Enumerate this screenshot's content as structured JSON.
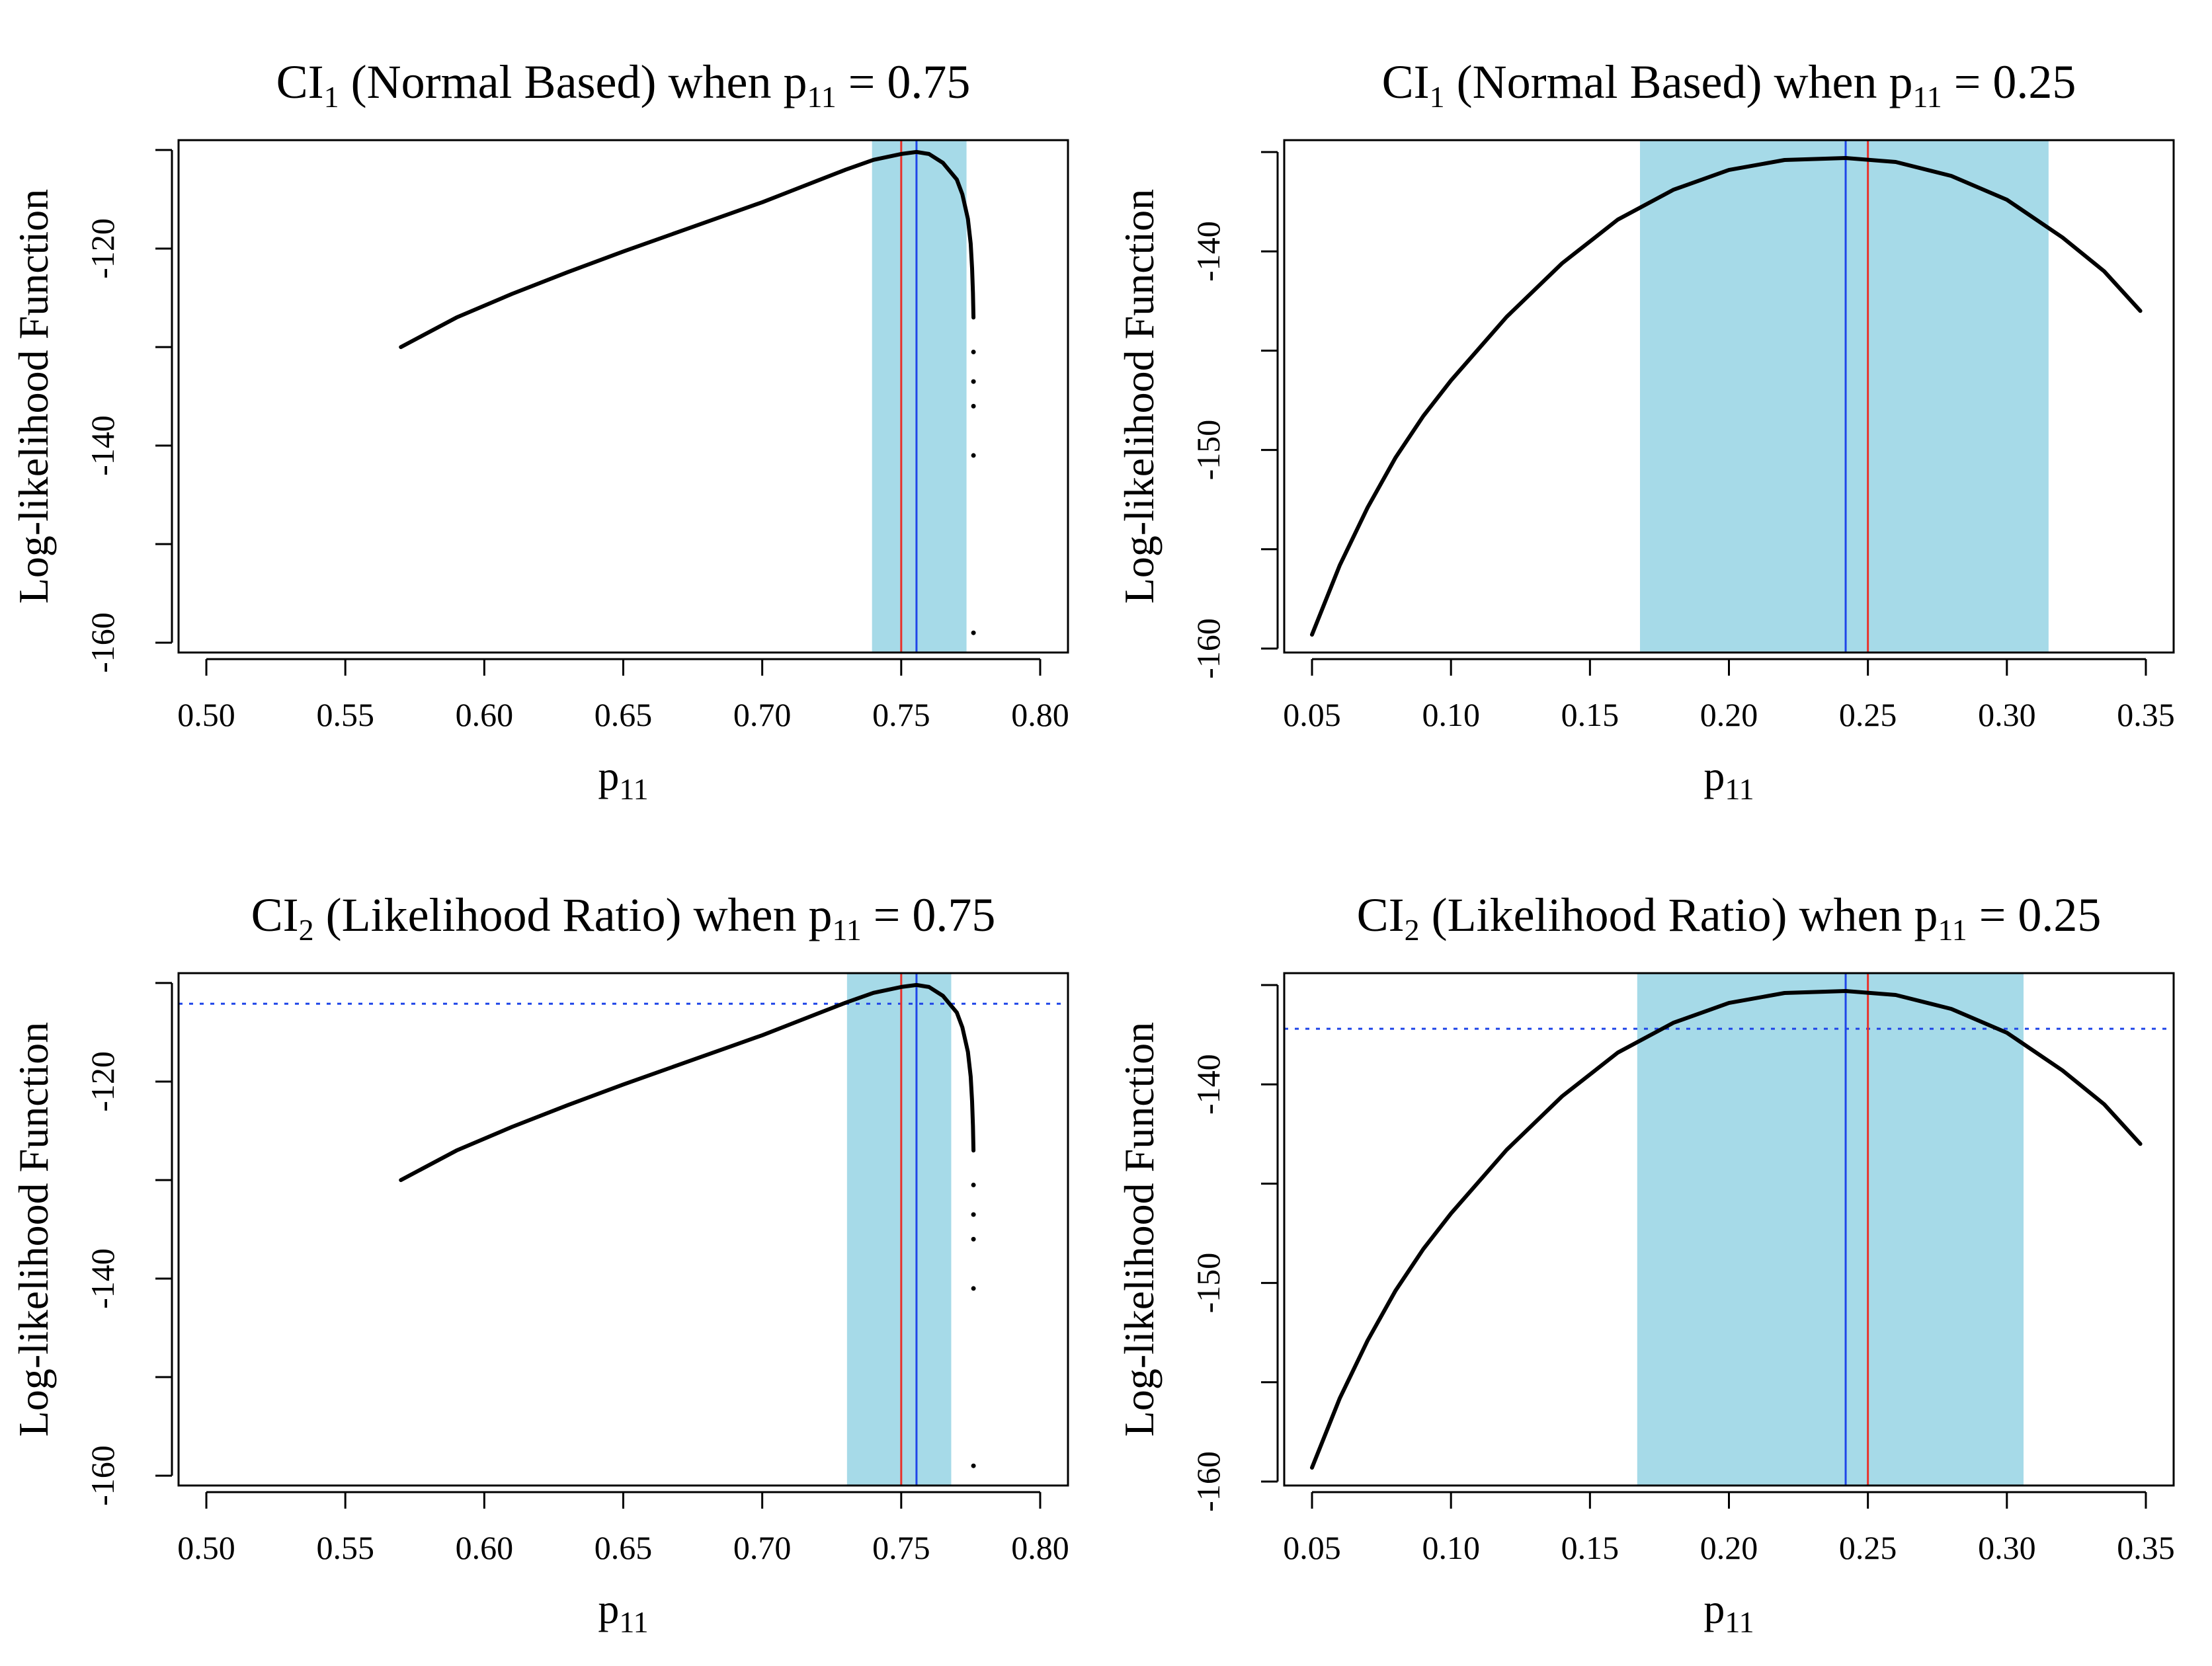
{
  "colors": {
    "ci_band": "#a6dae8",
    "true_value_line": "#e8312a",
    "mle_line": "#1f45e8",
    "cutoff_line": "#1f45e8",
    "curve": "#000000"
  },
  "chart_data": [
    {
      "id": "panel_top_left",
      "type": "line",
      "title": {
        "pre": "CI",
        "sub1": "1",
        "mid": " (Normal Based) when  p",
        "sub2": "11",
        "post": " = 0.75"
      },
      "xlabel": {
        "base": "p",
        "sub": "11"
      },
      "ylabel": "Log-likelihood Function",
      "xlim": [
        0.49,
        0.81
      ],
      "ylim": [
        -161,
        -109
      ],
      "xticks": [
        0.5,
        0.55,
        0.6,
        0.65,
        0.7,
        0.75,
        0.8
      ],
      "xtick_labels": [
        "0.50",
        "0.55",
        "0.60",
        "0.65",
        "0.70",
        "0.75",
        "0.80"
      ],
      "yticks": [
        -160,
        -150,
        -140,
        -130,
        -120,
        -110
      ],
      "ytick_labels": [
        "-160",
        "",
        "-140",
        "",
        "-120",
        ""
      ],
      "ci_band": [
        0.7395,
        0.7735
      ],
      "true_value": 0.75,
      "mle": 0.7555,
      "cutoff": null,
      "curve_x": [
        0.57,
        0.59,
        0.61,
        0.63,
        0.65,
        0.67,
        0.69,
        0.7,
        0.71,
        0.72,
        0.73,
        0.74,
        0.75,
        0.7555,
        0.76,
        0.765,
        0.77,
        0.772,
        0.774,
        0.775,
        0.7755,
        0.7758,
        0.776
      ],
      "curve_y": [
        -130.0,
        -127.0,
        -124.6,
        -122.4,
        -120.3,
        -118.3,
        -116.3,
        -115.3,
        -114.2,
        -113.1,
        -112.0,
        -111.0,
        -110.4,
        -110.2,
        -110.4,
        -111.3,
        -113.0,
        -114.5,
        -117.0,
        -119.5,
        -122.0,
        -124.5,
        -127.0
      ],
      "scatter_x": [
        0.776,
        0.776,
        0.776,
        0.776,
        0.776
      ],
      "scatter_y": [
        -130.5,
        -133.5,
        -136.0,
        -141.0,
        -159.0
      ]
    },
    {
      "id": "panel_top_right",
      "type": "line",
      "title": {
        "pre": "CI",
        "sub1": "1",
        "mid": " (Normal Based) when  p",
        "sub2": "11",
        "post": " = 0.25"
      },
      "xlabel": {
        "base": "p",
        "sub": "11"
      },
      "ylabel": "Log-likelihood Function",
      "xlim": [
        0.04,
        0.36
      ],
      "ylim": [
        -160.2,
        -134.4
      ],
      "xticks": [
        0.05,
        0.1,
        0.15,
        0.2,
        0.25,
        0.3,
        0.35
      ],
      "xtick_labels": [
        "0.05",
        "0.10",
        "0.15",
        "0.20",
        "0.25",
        "0.30",
        "0.35"
      ],
      "yticks": [
        -160,
        -155,
        -150,
        -145,
        -140,
        -135
      ],
      "ytick_labels": [
        "-160",
        "",
        "-150",
        "",
        "-140",
        ""
      ],
      "ci_band": [
        0.168,
        0.315
      ],
      "true_value": 0.25,
      "mle": 0.242,
      "cutoff": null,
      "curve_x": [
        0.05,
        0.06,
        0.07,
        0.08,
        0.09,
        0.1,
        0.12,
        0.14,
        0.16,
        0.18,
        0.2,
        0.22,
        0.242,
        0.26,
        0.28,
        0.3,
        0.32,
        0.335,
        0.348
      ],
      "curve_y": [
        -159.3,
        -155.8,
        -152.9,
        -150.4,
        -148.3,
        -146.5,
        -143.3,
        -140.6,
        -138.4,
        -136.9,
        -135.9,
        -135.4,
        -135.3,
        -135.5,
        -136.2,
        -137.4,
        -139.3,
        -141.0,
        -143.0
      ],
      "scatter_x": [],
      "scatter_y": []
    },
    {
      "id": "panel_bottom_left",
      "type": "line",
      "title": {
        "pre": "CI",
        "sub1": "2",
        "mid": " (Likelihood Ratio) when  p",
        "sub2": "11",
        "post": " = 0.75"
      },
      "xlabel": {
        "base": "p",
        "sub": "11"
      },
      "ylabel": "Log-likelihood Function",
      "xlim": [
        0.49,
        0.81
      ],
      "ylim": [
        -161,
        -109
      ],
      "xticks": [
        0.5,
        0.55,
        0.6,
        0.65,
        0.7,
        0.75,
        0.8
      ],
      "xtick_labels": [
        "0.50",
        "0.55",
        "0.60",
        "0.65",
        "0.70",
        "0.75",
        "0.80"
      ],
      "yticks": [
        -160,
        -150,
        -140,
        -130,
        -120,
        -110
      ],
      "ytick_labels": [
        "-160",
        "",
        "-140",
        "",
        "-120",
        ""
      ],
      "ci_band": [
        0.7305,
        0.768
      ],
      "true_value": 0.75,
      "mle": 0.7555,
      "cutoff": -112.1,
      "curve_x": [
        0.57,
        0.59,
        0.61,
        0.63,
        0.65,
        0.67,
        0.69,
        0.7,
        0.71,
        0.72,
        0.73,
        0.74,
        0.75,
        0.7555,
        0.76,
        0.765,
        0.77,
        0.772,
        0.774,
        0.775,
        0.7755,
        0.7758,
        0.776
      ],
      "curve_y": [
        -130.0,
        -127.0,
        -124.6,
        -122.4,
        -120.3,
        -118.3,
        -116.3,
        -115.3,
        -114.2,
        -113.1,
        -112.0,
        -111.0,
        -110.4,
        -110.2,
        -110.4,
        -111.3,
        -113.0,
        -114.5,
        -117.0,
        -119.5,
        -122.0,
        -124.5,
        -127.0
      ],
      "scatter_x": [
        0.776,
        0.776,
        0.776,
        0.776,
        0.776
      ],
      "scatter_y": [
        -130.5,
        -133.5,
        -136.0,
        -141.0,
        -159.0
      ]
    },
    {
      "id": "panel_bottom_right",
      "type": "line",
      "title": {
        "pre": "CI",
        "sub1": "2",
        "mid": " (Likelihood Ratio) when  p",
        "sub2": "11",
        "post": " = 0.25"
      },
      "xlabel": {
        "base": "p",
        "sub": "11"
      },
      "ylabel": "Log-likelihood Function",
      "xlim": [
        0.04,
        0.36
      ],
      "ylim": [
        -160.2,
        -134.4
      ],
      "xticks": [
        0.05,
        0.1,
        0.15,
        0.2,
        0.25,
        0.3,
        0.35
      ],
      "xtick_labels": [
        "0.05",
        "0.10",
        "0.15",
        "0.20",
        "0.25",
        "0.30",
        "0.35"
      ],
      "yticks": [
        -160,
        -155,
        -150,
        -145,
        -140,
        -135
      ],
      "ytick_labels": [
        "-160",
        "",
        "-150",
        "",
        "-140",
        ""
      ],
      "ci_band": [
        0.167,
        0.306
      ],
      "true_value": 0.25,
      "mle": 0.242,
      "cutoff": -137.2,
      "curve_x": [
        0.05,
        0.06,
        0.07,
        0.08,
        0.09,
        0.1,
        0.12,
        0.14,
        0.16,
        0.18,
        0.2,
        0.22,
        0.242,
        0.26,
        0.28,
        0.3,
        0.32,
        0.335,
        0.348
      ],
      "curve_y": [
        -159.3,
        -155.8,
        -152.9,
        -150.4,
        -148.3,
        -146.5,
        -143.3,
        -140.6,
        -138.4,
        -136.9,
        -135.9,
        -135.4,
        -135.3,
        -135.5,
        -136.2,
        -137.4,
        -139.3,
        -141.0,
        -143.0
      ],
      "scatter_x": [],
      "scatter_y": []
    }
  ]
}
